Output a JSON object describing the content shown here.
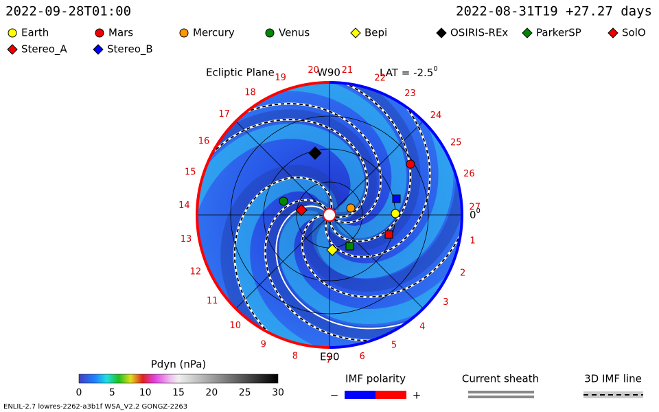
{
  "header": {
    "time": "2022-09-28T01:00",
    "run": "2022-08-31T19 +27.27 days"
  },
  "legend": [
    "Earth",
    "Mars",
    "Mercury",
    "Venus",
    "Bepi",
    "OSIRIS-REx",
    "ParkerSP",
    "SolO",
    "Stereo_A",
    "Stereo_B"
  ],
  "plot": {
    "title": "Ecliptic Plane",
    "top": "W90",
    "lat": "LAT = -2.5",
    "lat_sup": "0",
    "bottom": "E90",
    "zero": "0",
    "zero_sup": "0",
    "ring_labels": [
      "1",
      "2",
      "3",
      "4",
      "5",
      "6",
      "7",
      "8",
      "9",
      "10",
      "11",
      "12",
      "13",
      "14",
      "15",
      "16",
      "17",
      "18",
      "19",
      "20",
      "21",
      "22",
      "23",
      "24",
      "25",
      "26",
      "27"
    ]
  },
  "colorbar": {
    "title": "Pdyn (nPa)",
    "ticks": [
      "0",
      "5",
      "10",
      "15",
      "20",
      "25",
      "30"
    ]
  },
  "keys": {
    "imf": "IMF polarity",
    "minus": "−",
    "plus": "+",
    "sheath": "Current sheath",
    "line": "3D IMF line"
  },
  "footer": "ENLIL-2.7 lowres-2262-a3b1f WSA_V2.2 GONGZ-2263"
}
